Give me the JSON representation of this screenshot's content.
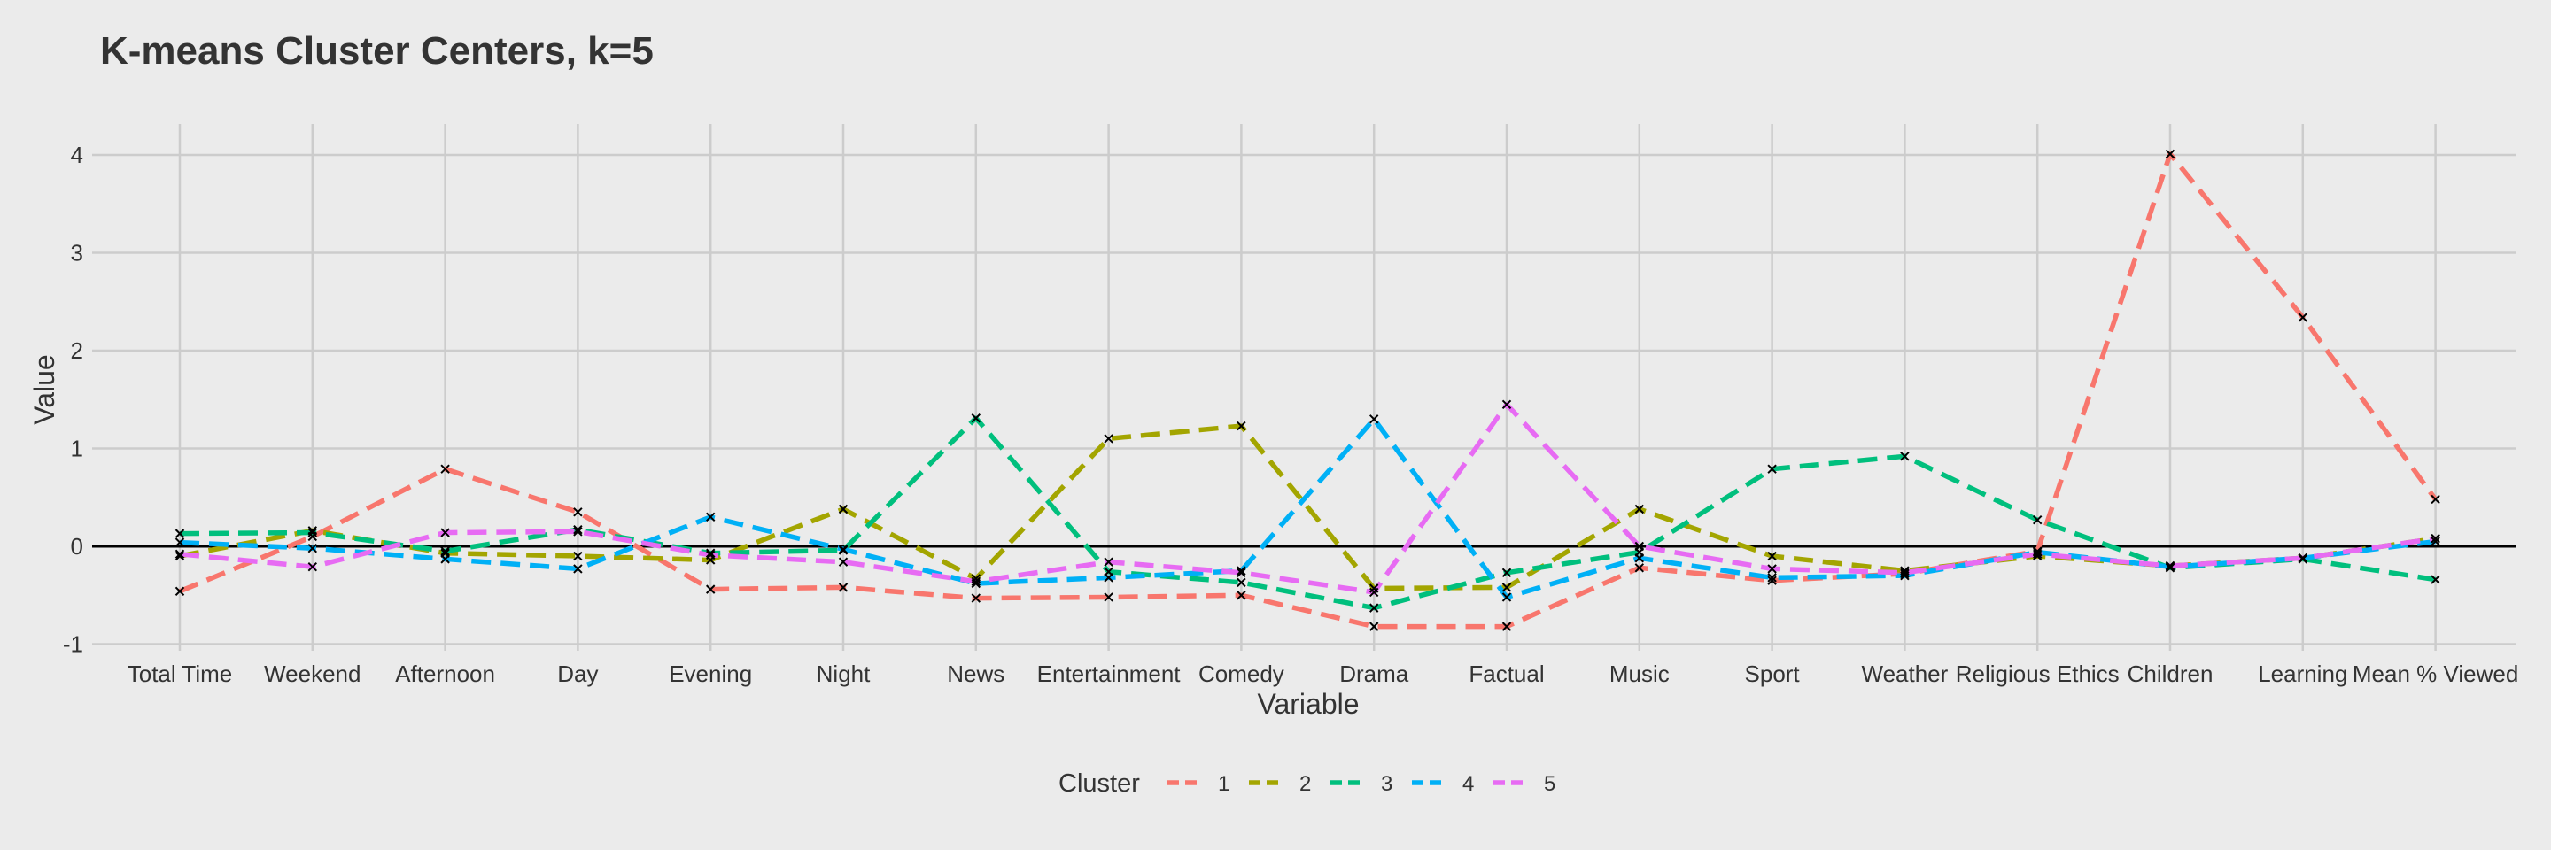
{
  "chart_data": {
    "type": "line",
    "title": "K-means Cluster Centers, k=5",
    "xlabel": "Variable",
    "ylabel": "Value",
    "ylim": [
      -1.0,
      4.2
    ],
    "yticks": [
      -1,
      0,
      1,
      2,
      3,
      4
    ],
    "grid": true,
    "legend_position": "bottom",
    "legend_title": "Cluster",
    "reference_line_y": 0,
    "categories": [
      "Total Time",
      "Weekend",
      "Afternoon",
      "Day",
      "Evening",
      "Night",
      "News",
      "Entertainment",
      "Comedy",
      "Drama",
      "Factual",
      "Music",
      "Sport",
      "Weather",
      "Religious Ethics",
      "Children",
      "Learning",
      "Mean % Viewed"
    ],
    "series": [
      {
        "name": "1",
        "color": "#F8766D",
        "values": [
          -0.46,
          0.1,
          0.79,
          0.35,
          -0.44,
          -0.42,
          -0.53,
          -0.52,
          -0.5,
          -0.82,
          -0.82,
          -0.22,
          -0.35,
          -0.28,
          -0.05,
          4.01,
          2.34,
          0.48
        ]
      },
      {
        "name": "2",
        "color": "#A3A500",
        "values": [
          -0.1,
          0.16,
          -0.07,
          -0.1,
          -0.14,
          0.38,
          -0.33,
          1.1,
          1.23,
          -0.43,
          -0.42,
          0.38,
          -0.1,
          -0.25,
          -0.1,
          -0.2,
          -0.12,
          0.08
        ]
      },
      {
        "name": "3",
        "color": "#00BF7D",
        "values": [
          0.13,
          0.14,
          -0.05,
          0.17,
          -0.07,
          -0.04,
          1.31,
          -0.26,
          -0.37,
          -0.63,
          -0.27,
          -0.06,
          0.79,
          0.92,
          0.27,
          -0.22,
          -0.13,
          -0.34
        ]
      },
      {
        "name": "4",
        "color": "#00B0F6",
        "values": [
          0.04,
          -0.02,
          -0.13,
          -0.23,
          0.3,
          -0.03,
          -0.38,
          -0.32,
          -0.25,
          1.3,
          -0.52,
          -0.12,
          -0.32,
          -0.3,
          -0.06,
          -0.21,
          -0.12,
          0.05
        ]
      },
      {
        "name": "5",
        "color": "#E76BF3",
        "values": [
          -0.08,
          -0.21,
          0.14,
          0.15,
          -0.09,
          -0.16,
          -0.36,
          -0.16,
          -0.27,
          -0.47,
          1.45,
          0.0,
          -0.23,
          -0.27,
          -0.08,
          -0.2,
          -0.12,
          0.08
        ]
      }
    ]
  }
}
